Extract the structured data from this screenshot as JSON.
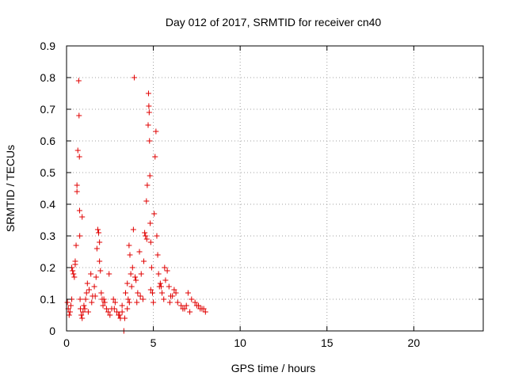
{
  "chart_data": {
    "type": "scatter",
    "title": "Day 012 of 2017, SRMTID for receiver cn40",
    "xlabel": "GPS time / hours",
    "ylabel": "SRMTID / TECUs",
    "xlim": [
      0,
      24
    ],
    "ylim": [
      0,
      0.9
    ],
    "x_ticks": [
      0,
      5,
      10,
      15,
      20
    ],
    "y_ticks": [
      0,
      0.1,
      0.2,
      0.3,
      0.4,
      0.5,
      0.6,
      0.7,
      0.8,
      0.9
    ],
    "x_tick_labels": [
      "0",
      "5",
      "10",
      "15",
      "20"
    ],
    "y_tick_labels": [
      "0",
      "0.1",
      "0.2",
      "0.3",
      "0.4",
      "0.5",
      "0.6",
      "0.7",
      "0.8",
      "0.9"
    ],
    "grid": true,
    "marker": "+",
    "color": "#e00000",
    "series": [
      {
        "name": "SRMTID",
        "x": [
          0.05,
          0.1,
          0.15,
          0.2,
          0.25,
          0.3,
          0.35,
          0.4,
          0.45,
          0.5,
          0.55,
          0.6,
          0.65,
          0.7,
          0.72,
          0.74,
          0.75,
          0.76,
          0.78,
          0.8,
          0.85,
          0.9,
          0.95,
          1.0,
          1.05,
          1.1,
          1.15,
          1.2,
          1.3,
          1.4,
          1.5,
          1.6,
          1.7,
          1.75,
          1.8,
          1.85,
          1.9,
          1.95,
          2.0,
          2.05,
          2.1,
          2.2,
          2.3,
          2.4,
          2.5,
          2.6,
          2.7,
          2.8,
          2.9,
          3.0,
          3.1,
          3.2,
          3.3,
          3.4,
          3.5,
          3.55,
          3.6,
          3.65,
          3.7,
          3.75,
          3.8,
          3.85,
          3.9,
          4.0,
          4.1,
          4.2,
          4.3,
          4.4,
          4.5,
          4.55,
          4.6,
          4.65,
          4.7,
          4.72,
          4.74,
          4.76,
          4.78,
          4.8,
          4.82,
          4.85,
          4.9,
          4.95,
          5.0,
          5.05,
          5.1,
          5.15,
          5.2,
          5.25,
          5.3,
          5.4,
          5.5,
          5.6,
          5.7,
          5.8,
          5.9,
          6.0,
          6.2,
          6.4,
          6.6,
          6.8,
          7.0,
          7.2,
          7.4,
          7.6,
          7.8,
          8.0,
          0.3,
          0.5,
          0.9,
          1.25,
          1.45,
          1.65,
          2.15,
          2.45,
          2.75,
          3.05,
          3.35,
          3.62,
          3.95,
          4.25,
          4.45,
          4.62,
          5.35,
          5.65,
          5.95,
          6.3,
          6.7,
          7.1,
          7.5,
          7.9,
          0.6,
          1.9,
          3.2,
          3.5,
          4.05,
          4.85,
          5.45,
          6.1,
          6.9,
          7.7
        ],
        "y": [
          0.09,
          0.07,
          0.05,
          0.06,
          0.08,
          0.2,
          0.19,
          0.18,
          0.17,
          0.22,
          0.27,
          0.44,
          0.57,
          0.79,
          0.68,
          0.55,
          0.38,
          0.3,
          0.1,
          0.07,
          0.05,
          0.04,
          0.06,
          0.08,
          0.07,
          0.1,
          0.12,
          0.15,
          0.13,
          0.18,
          0.11,
          0.14,
          0.17,
          0.26,
          0.32,
          0.31,
          0.22,
          0.19,
          0.12,
          0.1,
          0.08,
          0.09,
          0.07,
          0.06,
          0.05,
          0.07,
          0.1,
          0.09,
          0.06,
          0.05,
          0.04,
          0.08,
          0.0,
          0.12,
          0.15,
          0.1,
          0.27,
          0.24,
          0.18,
          0.14,
          0.2,
          0.32,
          0.8,
          0.16,
          0.12,
          0.25,
          0.18,
          0.1,
          0.31,
          0.3,
          0.41,
          0.46,
          0.65,
          0.75,
          0.71,
          0.69,
          0.6,
          0.49,
          0.34,
          0.28,
          0.2,
          0.12,
          0.09,
          0.37,
          0.55,
          0.63,
          0.3,
          0.24,
          0.18,
          0.15,
          0.12,
          0.1,
          0.16,
          0.19,
          0.14,
          0.11,
          0.13,
          0.09,
          0.08,
          0.07,
          0.12,
          0.1,
          0.09,
          0.08,
          0.07,
          0.06,
          0.1,
          0.21,
          0.36,
          0.06,
          0.09,
          0.11,
          0.1,
          0.18,
          0.07,
          0.05,
          0.04,
          0.09,
          0.17,
          0.11,
          0.22,
          0.29,
          0.14,
          0.2,
          0.09,
          0.12,
          0.07,
          0.06,
          0.08,
          0.07,
          0.46,
          0.28,
          0.06,
          0.07,
          0.09,
          0.13,
          0.14,
          0.11,
          0.08,
          0.07
        ]
      }
    ]
  }
}
